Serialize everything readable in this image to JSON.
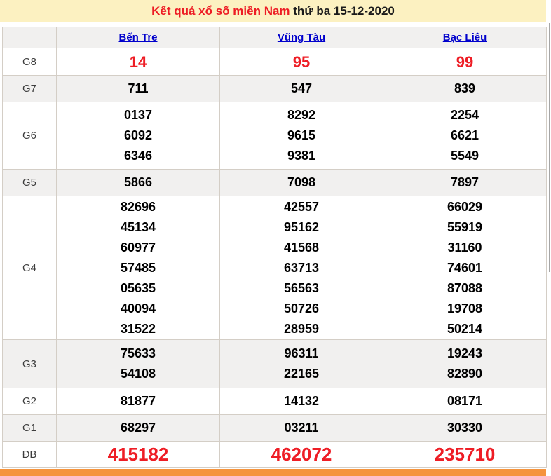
{
  "header": {
    "title_red": "Kết quả xổ số miền Nam",
    "title_black": " thứ ba 15-12-2020"
  },
  "table": {
    "province_columns": [
      "Bến Tre",
      "Vũng Tàu",
      "Bạc Liêu"
    ],
    "prize_rows": [
      {
        "label": "G8",
        "style": "red-large",
        "cells": [
          [
            "14"
          ],
          [
            "95"
          ],
          [
            "99"
          ]
        ]
      },
      {
        "label": "G7",
        "style": "normal",
        "cells": [
          [
            "711"
          ],
          [
            "547"
          ],
          [
            "839"
          ]
        ]
      },
      {
        "label": "G6",
        "style": "normal",
        "cells": [
          [
            "0137",
            "6092",
            "6346"
          ],
          [
            "8292",
            "9615",
            "9381"
          ],
          [
            "2254",
            "6621",
            "5549"
          ]
        ]
      },
      {
        "label": "G5",
        "style": "normal",
        "cells": [
          [
            "5866"
          ],
          [
            "7098"
          ],
          [
            "7897"
          ]
        ]
      },
      {
        "label": "G4",
        "style": "normal",
        "cells": [
          [
            "82696",
            "45134",
            "60977",
            "57485",
            "05635",
            "40094",
            "31522"
          ],
          [
            "42557",
            "95162",
            "41568",
            "63713",
            "56563",
            "50726",
            "28959"
          ],
          [
            "66029",
            "55919",
            "31160",
            "74601",
            "87088",
            "19708",
            "50214"
          ]
        ]
      },
      {
        "label": "G3",
        "style": "normal",
        "cells": [
          [
            "75633",
            "54108"
          ],
          [
            "96311",
            "22165"
          ],
          [
            "19243",
            "82890"
          ]
        ]
      },
      {
        "label": "G2",
        "style": "normal",
        "cells": [
          [
            "81877"
          ],
          [
            "14132"
          ],
          [
            "08171"
          ]
        ]
      },
      {
        "label": "G1",
        "style": "normal",
        "cells": [
          [
            "68297"
          ],
          [
            "03211"
          ],
          [
            "30330"
          ]
        ]
      },
      {
        "label": "ĐB",
        "style": "red-xlarge",
        "cells": [
          [
            "415182"
          ],
          [
            "462072"
          ],
          [
            "235710"
          ]
        ]
      }
    ]
  },
  "colors": {
    "title_background": "#FCF1C1",
    "title_red": "#ED1C24",
    "link_blue": "#0000CC",
    "highlight_red": "#EE1D25",
    "alt_row_gray": "#F1F0EF",
    "table_border": "#D4CEC6",
    "bottom_bar_orange": "#F5943D"
  }
}
